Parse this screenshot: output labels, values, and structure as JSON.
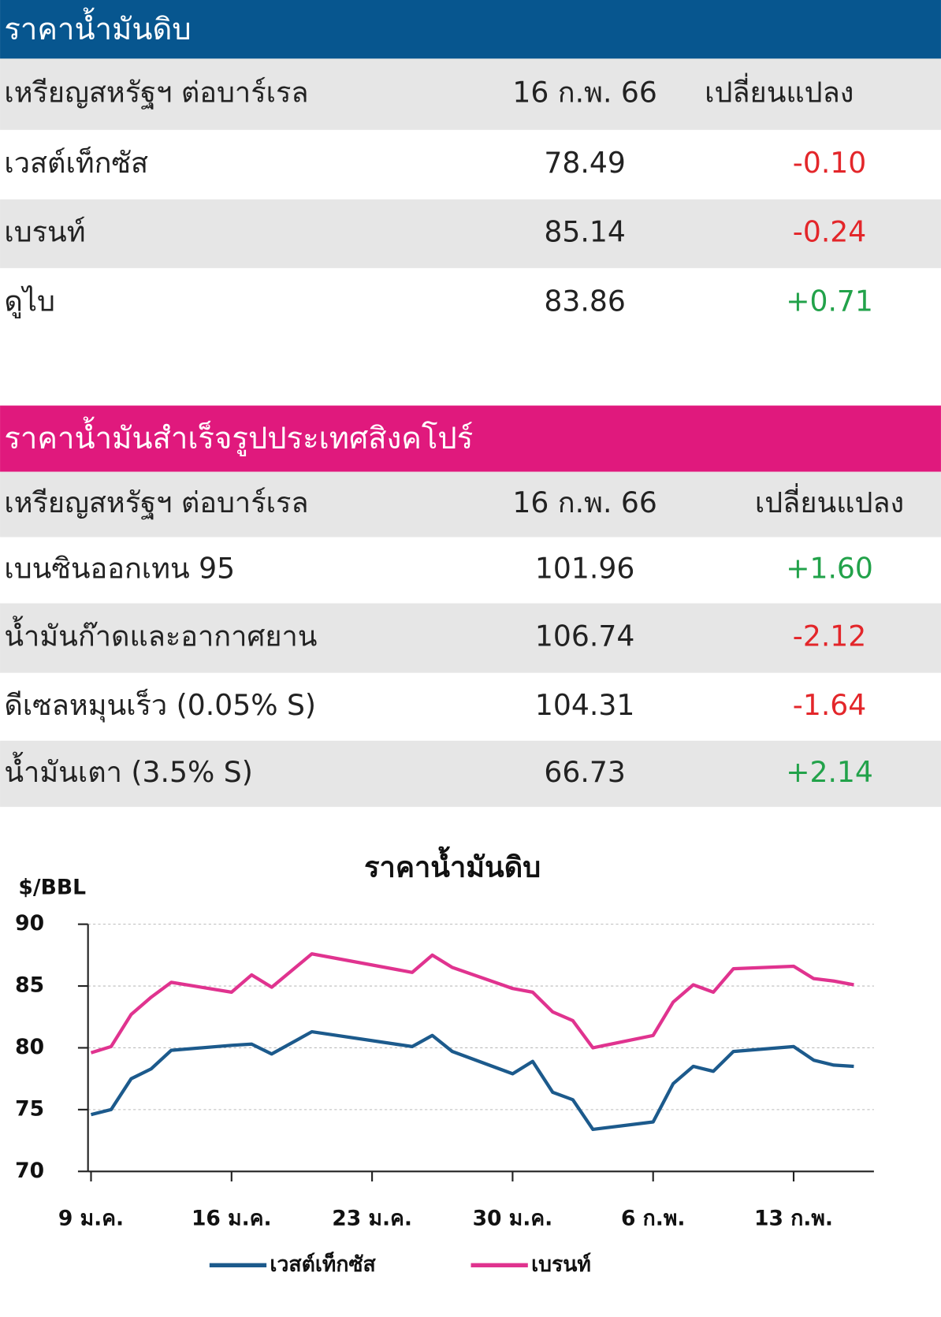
{
  "table1": {
    "title": "ราคาน้ำมันดิบ",
    "header": [
      "เหรียญสหรัฐฯ ต่อบาร์เรล",
      "16 ก.พ. 66",
      "เปลี่ยนแปลง"
    ],
    "rows": [
      [
        "เวสต์เท็กซัส",
        "78.49",
        "-0.10"
      ],
      [
        "เบรนท์",
        "85.14",
        "-0.24"
      ],
      [
        "ดูไบ",
        "83.86",
        "+0.71"
      ]
    ]
  },
  "table2": {
    "title": "ราคาน้ำมันสำเร็จรูปประเทศสิงคโปร์",
    "header": [
      "เหรียญสหรัฐฯ ต่อบาร์เรล",
      "16 ก.พ. 66",
      "เปลี่ยนแปลง"
    ],
    "rows": [
      [
        "เบนซินออกเทน 95",
        "101.96",
        "+1.60"
      ],
      [
        "น้ำมันก๊าดและอากาศยาน",
        "106.74",
        "-2.12"
      ],
      [
        "ดีเซลหมุนเร็ว (0.05% S)",
        "104.31",
        "-1.64"
      ],
      [
        "น้ำมันเตา (3.5% S)",
        "66.73",
        "+2.14"
      ]
    ]
  },
  "chart_data": {
    "type": "line",
    "title": "ราคาน้ำมันดิบ",
    "y_label": "$/BBL",
    "x": [
      9,
      10,
      11,
      12,
      13,
      16,
      17,
      18,
      20,
      25,
      26,
      27,
      30,
      31,
      32,
      33,
      34,
      37,
      38,
      39,
      40,
      41,
      44,
      45,
      46,
      47
    ],
    "xlim": [
      8.85,
      48
    ],
    "xticks": [
      {
        "value": 9,
        "label": "9 ม.ค."
      },
      {
        "value": 16,
        "label": "16 ม.ค."
      },
      {
        "value": 23,
        "label": "23 ม.ค."
      },
      {
        "value": 30,
        "label": "30 ม.ค."
      },
      {
        "value": 37,
        "label": "6 ก.พ."
      },
      {
        "value": 44,
        "label": "13 ก.พ."
      }
    ],
    "ylim": [
      70,
      90
    ],
    "yticks": [
      70,
      75,
      80,
      85,
      90
    ],
    "grid": true,
    "series": [
      {
        "name": "เวสต์เท็กซัส",
        "color": "#1c5a8c",
        "values": [
          74.6,
          75.0,
          77.5,
          78.3,
          79.8,
          80.2,
          80.3,
          79.5,
          81.3,
          80.1,
          81.0,
          79.7,
          77.9,
          78.9,
          76.4,
          75.8,
          73.4,
          74.0,
          77.1,
          78.5,
          78.1,
          79.7,
          80.1,
          79.0,
          78.6,
          78.5
        ]
      },
      {
        "name": "เบรนท์",
        "color": "#e0338f",
        "values": [
          79.6,
          80.1,
          82.7,
          84.1,
          85.3,
          84.5,
          85.9,
          84.9,
          87.6,
          86.1,
          87.5,
          86.5,
          84.8,
          84.5,
          82.9,
          82.2,
          80.0,
          81.0,
          83.7,
          85.1,
          84.5,
          86.4,
          86.6,
          85.6,
          85.4,
          85.1
        ]
      }
    ]
  }
}
